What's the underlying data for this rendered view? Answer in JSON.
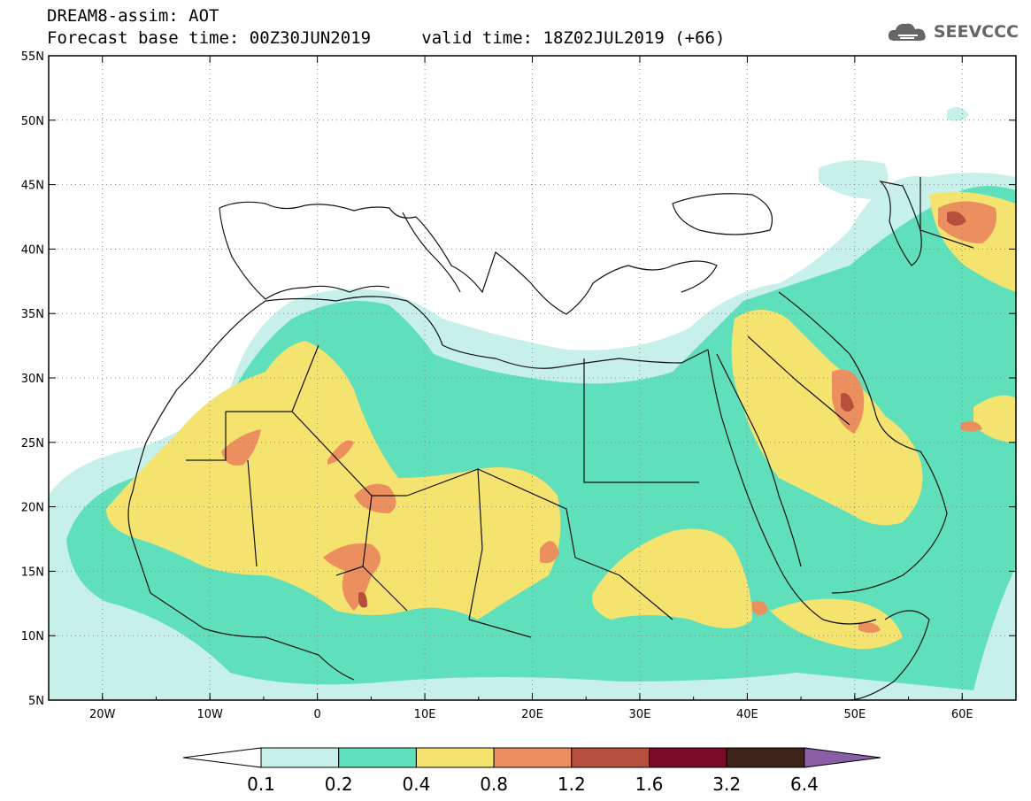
{
  "header": {
    "model_line": "DREAM8-assim: AOT",
    "base_time": "Forecast base time: 00Z30JUN2019",
    "valid_time": "valid time: 18Z02JUL2019 (+66)",
    "brand": "SEEVCCC"
  },
  "map": {
    "lat_labels": [
      "55N",
      "50N",
      "45N",
      "40N",
      "35N",
      "30N",
      "25N",
      "20N",
      "15N",
      "10N",
      "5N"
    ],
    "lon_labels": [
      "20W",
      "10W",
      "0",
      "10E",
      "20E",
      "30E",
      "40E",
      "50E",
      "60E"
    ],
    "lat_range": [
      5,
      55
    ],
    "lon_range": [
      -25,
      65
    ],
    "gridlines": true
  },
  "colorbar": {
    "ticks": [
      "0.1",
      "0.2",
      "0.4",
      "0.8",
      "1.2",
      "1.6",
      "3.2",
      "6.4"
    ],
    "colors": [
      "#c8f0ea",
      "#5fe0bb",
      "#f5e370",
      "#ec8f5f",
      "#b74f3d",
      "#7a0a28",
      "#3d2418"
    ],
    "under_color": "#ffffff",
    "over_color": "#8a5fa8"
  }
}
